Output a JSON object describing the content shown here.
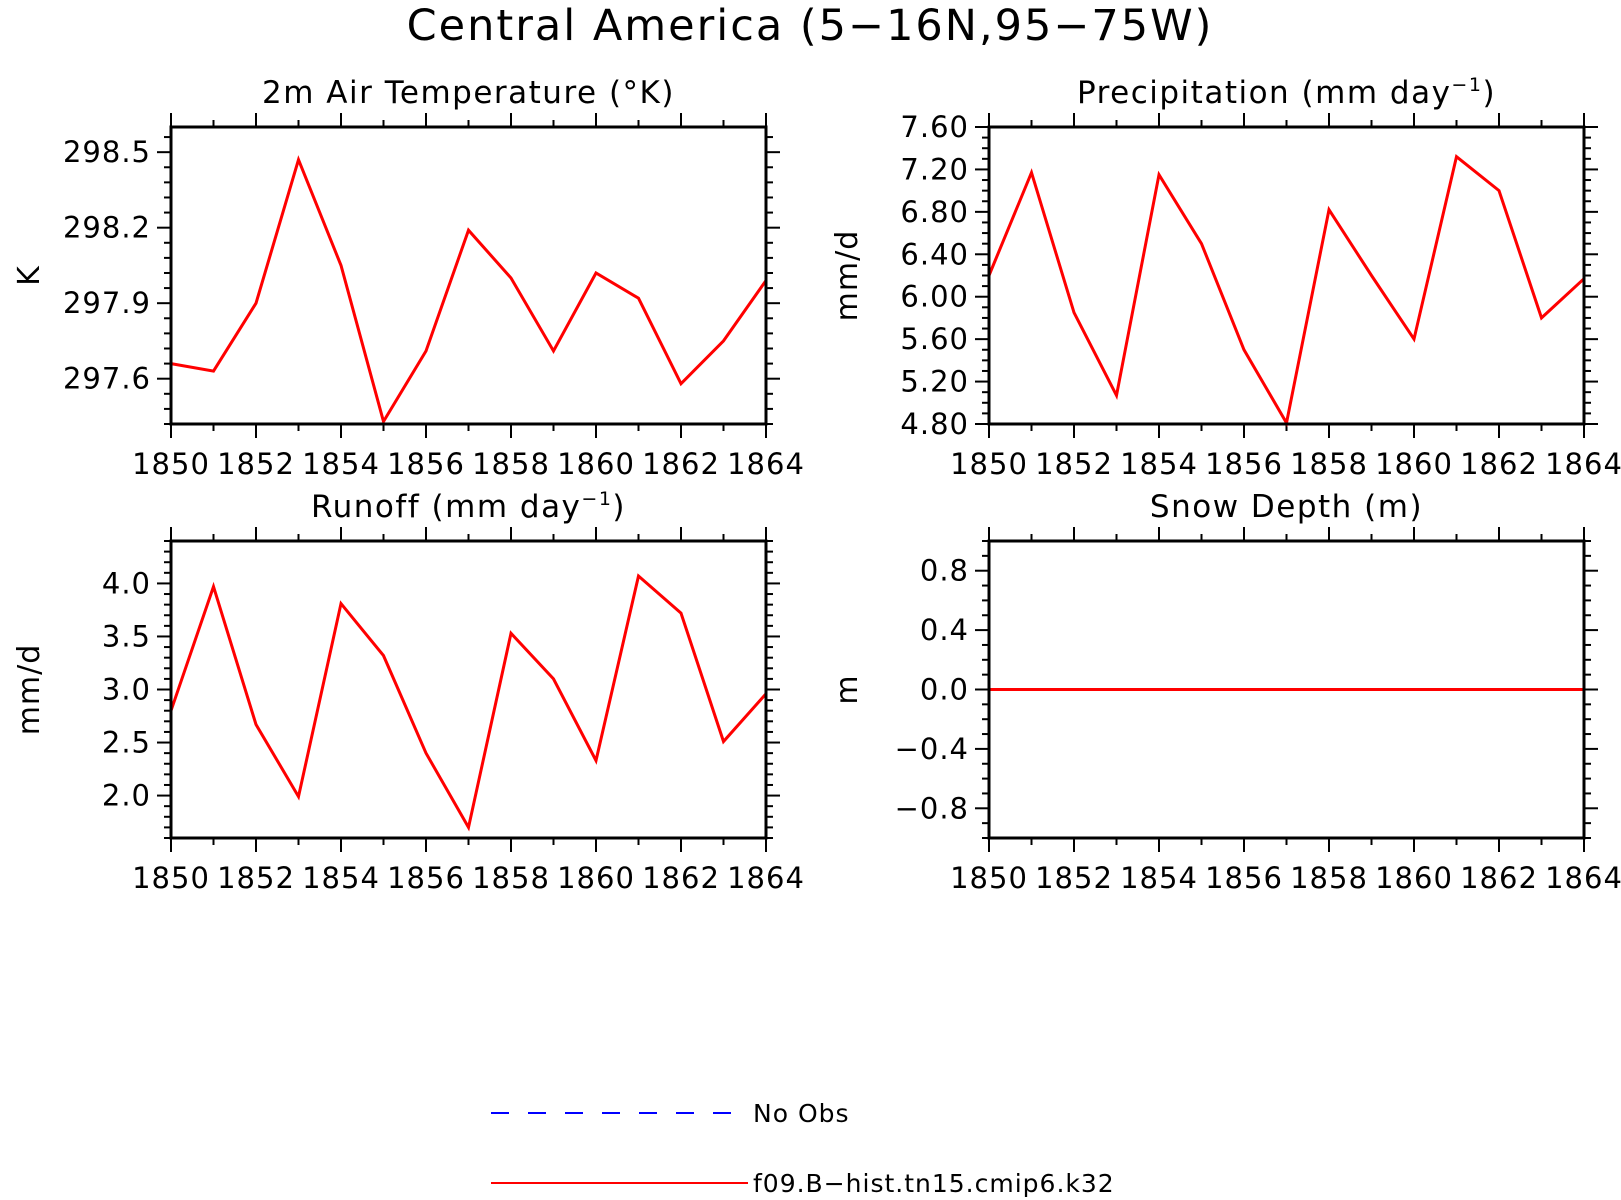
{
  "figure_title": "Central America (5−16N,95−75W)",
  "colors": {
    "model": "#ff0000",
    "obs": "#0000ff",
    "axes": "#000000"
  },
  "legend": [
    {
      "label": "No Obs",
      "color": "#0000ff",
      "style": "dashed"
    },
    {
      "label": "f09.B−hist.tn15.cmip6.k32",
      "color": "#ff0000",
      "style": "solid"
    }
  ],
  "chart_data": [
    {
      "type": "line",
      "title": "2m Air Temperature (°K)",
      "title_sup": "",
      "title_suffix": "",
      "ylabel": "K",
      "xlim": [
        1850,
        1864
      ],
      "ylim": [
        297.42,
        298.6
      ],
      "xticks": [
        "1850",
        "1852",
        "1854",
        "1856",
        "1858",
        "1860",
        "1862",
        "1864"
      ],
      "yticks": [
        "297.6",
        "297.9",
        "298.2",
        "298.5"
      ],
      "grid": false,
      "series": [
        {
          "name": "f09.B−hist.tn15.cmip6.k32",
          "x": [
            1850,
            1851,
            1852,
            1853,
            1854,
            1855,
            1856,
            1857,
            1858,
            1859,
            1860,
            1861,
            1862,
            1863,
            1864
          ],
          "y": [
            297.66,
            297.63,
            297.9,
            298.47,
            298.05,
            297.43,
            297.71,
            298.19,
            298.0,
            297.71,
            298.02,
            297.92,
            297.58,
            297.75,
            297.99
          ]
        }
      ]
    },
    {
      "type": "line",
      "title": "Precipitation (mm day",
      "title_sup": "−1",
      "title_suffix": ")",
      "ylabel": "mm/d",
      "xlim": [
        1850,
        1864
      ],
      "ylim": [
        4.8,
        7.6
      ],
      "xticks": [
        "1850",
        "1852",
        "1854",
        "1856",
        "1858",
        "1860",
        "1862",
        "1864"
      ],
      "yticks": [
        "4.80",
        "5.20",
        "5.60",
        "6.00",
        "6.40",
        "6.80",
        "7.20",
        "7.60"
      ],
      "grid": false,
      "series": [
        {
          "name": "f09.B−hist.tn15.cmip6.k32",
          "x": [
            1850,
            1851,
            1852,
            1853,
            1854,
            1855,
            1856,
            1857,
            1858,
            1859,
            1860,
            1861,
            1862,
            1863,
            1864
          ],
          "y": [
            6.2,
            7.17,
            5.85,
            5.07,
            7.15,
            6.5,
            5.5,
            4.81,
            6.82,
            6.2,
            5.6,
            7.32,
            7.0,
            5.8,
            6.17
          ]
        }
      ]
    },
    {
      "type": "line",
      "title": "Runoff (mm day",
      "title_sup": "−1",
      "title_suffix": ")",
      "ylabel": "mm/d",
      "xlim": [
        1850,
        1864
      ],
      "ylim": [
        1.6,
        4.4
      ],
      "xticks": [
        "1850",
        "1852",
        "1854",
        "1856",
        "1858",
        "1860",
        "1862",
        "1864"
      ],
      "yticks": [
        "2.0",
        "2.5",
        "3.0",
        "3.5",
        "4.0"
      ],
      "grid": false,
      "series": [
        {
          "name": "f09.B−hist.tn15.cmip6.k32",
          "x": [
            1850,
            1851,
            1852,
            1853,
            1854,
            1855,
            1856,
            1857,
            1858,
            1859,
            1860,
            1861,
            1862,
            1863,
            1864
          ],
          "y": [
            2.8,
            3.97,
            2.67,
            1.99,
            3.81,
            3.32,
            2.4,
            1.7,
            3.53,
            3.1,
            2.33,
            4.07,
            3.72,
            2.51,
            2.96
          ]
        }
      ]
    },
    {
      "type": "line",
      "title": "Snow Depth (m)",
      "title_sup": "",
      "title_suffix": "",
      "ylabel": "m",
      "xlim": [
        1850,
        1864
      ],
      "ylim": [
        -1.0,
        1.0
      ],
      "xticks": [
        "1850",
        "1852",
        "1854",
        "1856",
        "1858",
        "1860",
        "1862",
        "1864"
      ],
      "yticks": [
        "−0.8",
        "−0.4",
        "0.0",
        "0.4",
        "0.8"
      ],
      "grid": false,
      "series": [
        {
          "name": "f09.B−hist.tn15.cmip6.k32",
          "x": [
            1850,
            1851,
            1852,
            1853,
            1854,
            1855,
            1856,
            1857,
            1858,
            1859,
            1860,
            1861,
            1862,
            1863,
            1864
          ],
          "y": [
            0,
            0,
            0,
            0,
            0,
            0,
            0,
            0,
            0,
            0,
            0,
            0,
            0,
            0,
            0
          ]
        }
      ]
    }
  ]
}
